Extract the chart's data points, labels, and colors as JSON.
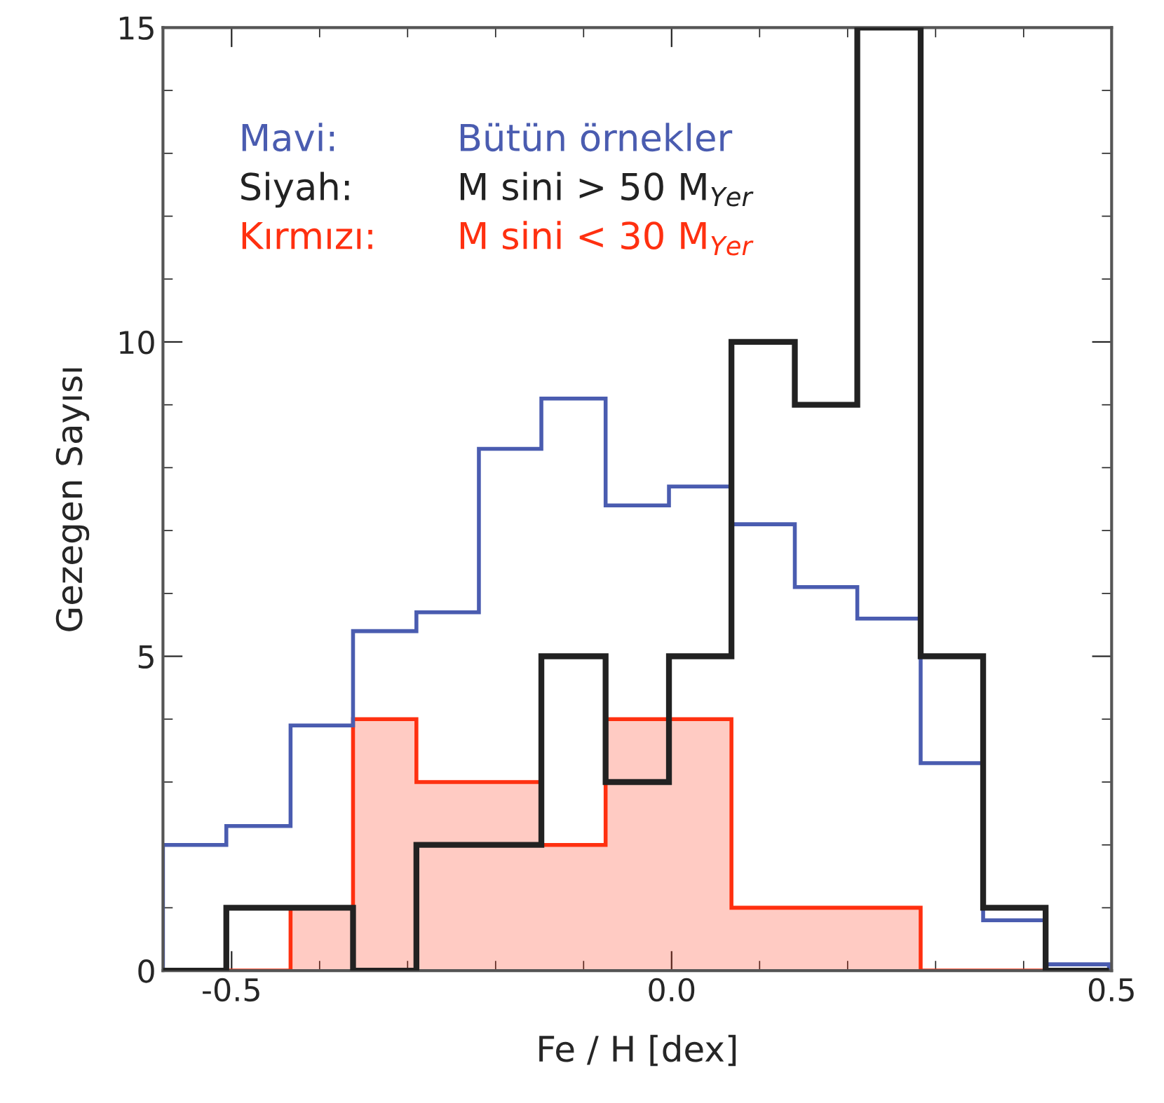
{
  "chart_data": {
    "type": "histogram",
    "xlabel": "Fe / H [dex]",
    "ylabel": "Gezegen Sayısı",
    "bins": [
      -0.578,
      -0.506,
      -0.433,
      -0.362,
      -0.29,
      -0.219,
      -0.148,
      -0.075,
      -0.003,
      0.068,
      0.14,
      0.211,
      0.283,
      0.354,
      0.425,
      0.497
    ],
    "series": [
      {
        "name": "Bütün örnekler",
        "color": "#4a5cb0",
        "values": [
          2.0,
          2.3,
          3.9,
          5.4,
          5.7,
          8.3,
          9.1,
          7.4,
          7.7,
          7.1,
          6.1,
          5.6,
          3.3,
          0.8,
          0.1
        ]
      },
      {
        "name": "M sini > 50 M$_{Yer}$",
        "color": "#222222",
        "values": [
          0,
          1,
          1,
          0,
          2,
          2,
          5,
          3,
          5,
          10,
          9,
          15,
          5,
          1,
          0
        ]
      },
      {
        "name": "M sini < 30 M$_{Yer}$",
        "color": "#ff3010",
        "values": [
          0,
          0,
          1,
          4,
          3,
          3,
          2,
          4,
          4,
          1,
          1,
          1,
          0,
          0,
          0
        ]
      }
    ],
    "annotations": [
      "Mavi:",
      "Siyah:",
      "Kırmızı:"
    ],
    "xlim": [
      -0.578,
      0.5
    ],
    "ylim": [
      0,
      15
    ],
    "xticks": [
      {
        "value": -0.5,
        "label": "-0.5"
      },
      {
        "value": 0.0,
        "label": "0.0"
      },
      {
        "value": 0.5,
        "label": "0.5"
      }
    ],
    "yticks": [
      0,
      5,
      10,
      15
    ],
    "legend": "top left",
    "grid": false
  }
}
